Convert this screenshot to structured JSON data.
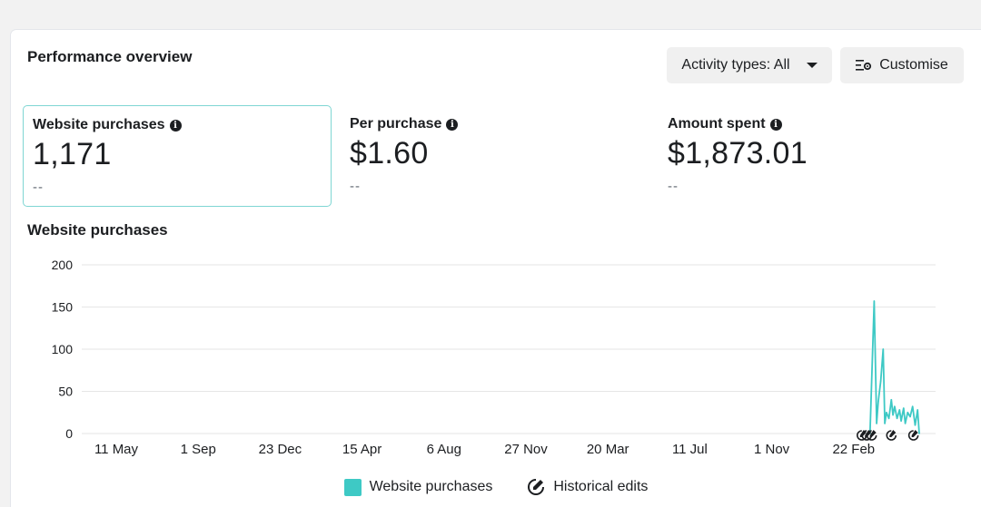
{
  "header": {
    "title": "Performance overview",
    "activity_button": "Activity types: All",
    "customise_button": "Customise"
  },
  "metrics": [
    {
      "label": "Website purchases",
      "value": "1,171",
      "change": "--"
    },
    {
      "label": "Per purchase",
      "value": "$1.60",
      "change": "--"
    },
    {
      "label": "Amount spent",
      "value": "$1,873.01",
      "change": "--"
    }
  ],
  "chart_data": {
    "type": "line",
    "title": "Website purchases",
    "y_ticks": [
      "200",
      "150",
      "100",
      "50",
      "0"
    ],
    "ylim": [
      0,
      200
    ],
    "x_tick_labels": [
      "11 May",
      "1 Sep",
      "23 Dec",
      "15 Apr",
      "6 Aug",
      "27 Nov",
      "20 Mar",
      "11 Jul",
      "1 Nov",
      "22 Feb"
    ],
    "grid": true,
    "legend_position": "bottom",
    "series": [
      {
        "name": "Website purchases",
        "color": "#3ec9c5",
        "x": [
          9.2,
          9.25,
          9.28,
          9.3,
          9.33,
          9.36,
          9.38,
          9.4,
          9.43,
          9.46,
          9.48,
          9.5,
          9.53,
          9.56,
          9.58,
          9.61,
          9.63,
          9.66,
          9.69,
          9.72,
          9.75,
          9.78,
          9.8
        ],
        "values": [
          0,
          157,
          12,
          38,
          62,
          100,
          12,
          25,
          18,
          40,
          22,
          32,
          18,
          28,
          15,
          30,
          12,
          25,
          20,
          32,
          10,
          28,
          0
        ]
      }
    ],
    "historical_edits": {
      "name": "Historical edits",
      "x": [
        9.1,
        9.16,
        9.22,
        9.46,
        9.73
      ]
    }
  },
  "legend": {
    "purchases": "Website purchases",
    "edits": "Historical edits"
  }
}
